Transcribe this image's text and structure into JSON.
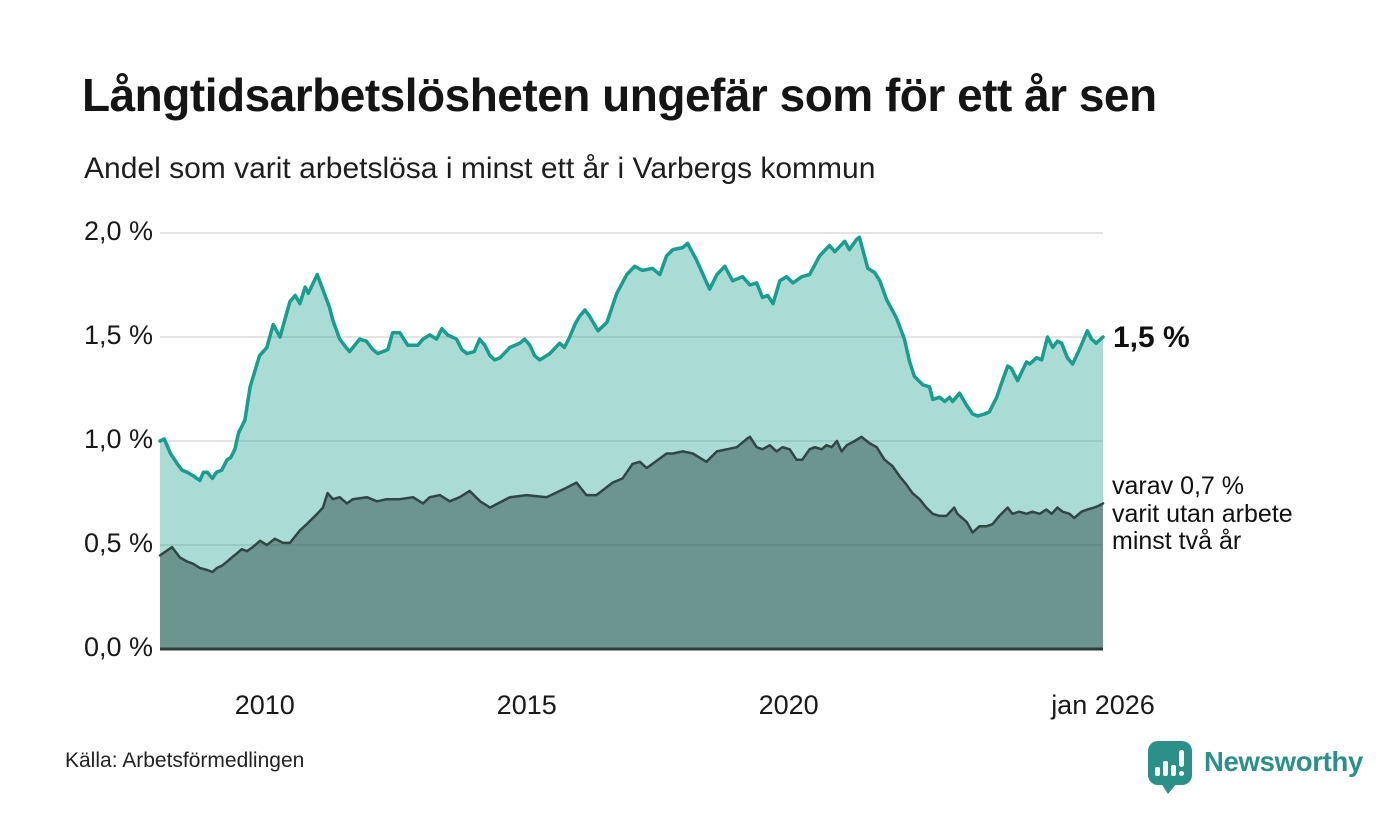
{
  "header": {
    "title": "Långtidsarbetslösheten ungefär som för ett år sen",
    "subtitle": "Andel som varit arbetslösa i minst ett år i Varbergs kommun"
  },
  "annotations": {
    "latest_value_label": "1,5 %",
    "secondary_label_lines": [
      "varav 0,7 %",
      "varit utan arbete",
      "minst två år"
    ]
  },
  "footer": {
    "source": "Källa: Arbetsförmedlingen",
    "brand": "Newsworthy"
  },
  "colors": {
    "accent_teal": "#189d8e",
    "dark_line": "#2f4744",
    "grid": "#dcdcdc",
    "axis": "#2e3c3a",
    "brand": "#2b9087",
    "text": "#191919"
  },
  "chart_data": {
    "type": "area",
    "title": "Långtidsarbetslösheten ungefär som för ett år sen",
    "subtitle": "Andel som varit arbetslösa i minst ett år i Varbergs kommun",
    "x_unit": "decimal_year",
    "xlim": [
      2008,
      2026
    ],
    "ylim": [
      0,
      2.0
    ],
    "grid": true,
    "yticks": [
      {
        "value": 2.0,
        "label": "2,0 %"
      },
      {
        "value": 1.5,
        "label": "1,5 %"
      },
      {
        "value": 1.0,
        "label": "1,0 %"
      },
      {
        "value": 0.5,
        "label": "0,5 %"
      },
      {
        "value": 0.0,
        "label": "0,0 %"
      }
    ],
    "xticks": [
      {
        "value": 2010,
        "label": "2010"
      },
      {
        "value": 2015,
        "label": "2015"
      },
      {
        "value": 2020,
        "label": "2020"
      },
      {
        "value": 2026,
        "label": "jan 2026"
      }
    ],
    "series": [
      {
        "name": "Andel arbetslösa minst ett år",
        "latest_label": "1,5 %",
        "color": "#189d8e",
        "fill": "rgba(26,158,142,0.37)",
        "line_width": 3.5,
        "points": [
          [
            2008.0,
            1.0
          ],
          [
            2008.08,
            1.01
          ],
          [
            2008.2,
            0.94
          ],
          [
            2008.33,
            0.89
          ],
          [
            2008.42,
            0.86
          ],
          [
            2008.52,
            0.85
          ],
          [
            2008.65,
            0.83
          ],
          [
            2008.76,
            0.81
          ],
          [
            2008.83,
            0.85
          ],
          [
            2008.9,
            0.85
          ],
          [
            2009.0,
            0.82
          ],
          [
            2009.08,
            0.85
          ],
          [
            2009.18,
            0.86
          ],
          [
            2009.28,
            0.91
          ],
          [
            2009.35,
            0.92
          ],
          [
            2009.43,
            0.96
          ],
          [
            2009.5,
            1.04
          ],
          [
            2009.62,
            1.1
          ],
          [
            2009.72,
            1.26
          ],
          [
            2009.9,
            1.41
          ],
          [
            2010.04,
            1.45
          ],
          [
            2010.16,
            1.56
          ],
          [
            2010.29,
            1.5
          ],
          [
            2010.48,
            1.67
          ],
          [
            2010.58,
            1.7
          ],
          [
            2010.67,
            1.66
          ],
          [
            2010.77,
            1.74
          ],
          [
            2010.83,
            1.71
          ],
          [
            2011.0,
            1.8
          ],
          [
            2011.12,
            1.72
          ],
          [
            2011.24,
            1.64
          ],
          [
            2011.3,
            1.58
          ],
          [
            2011.43,
            1.49
          ],
          [
            2011.55,
            1.45
          ],
          [
            2011.62,
            1.43
          ],
          [
            2011.81,
            1.49
          ],
          [
            2011.94,
            1.48
          ],
          [
            2012.06,
            1.44
          ],
          [
            2012.16,
            1.42
          ],
          [
            2012.35,
            1.44
          ],
          [
            2012.44,
            1.52
          ],
          [
            2012.58,
            1.52
          ],
          [
            2012.73,
            1.46
          ],
          [
            2012.92,
            1.46
          ],
          [
            2013.02,
            1.49
          ],
          [
            2013.15,
            1.51
          ],
          [
            2013.28,
            1.49
          ],
          [
            2013.38,
            1.54
          ],
          [
            2013.49,
            1.51
          ],
          [
            2013.66,
            1.49
          ],
          [
            2013.76,
            1.44
          ],
          [
            2013.86,
            1.42
          ],
          [
            2014.0,
            1.43
          ],
          [
            2014.1,
            1.49
          ],
          [
            2014.2,
            1.46
          ],
          [
            2014.3,
            1.41
          ],
          [
            2014.39,
            1.39
          ],
          [
            2014.49,
            1.4
          ],
          [
            2014.68,
            1.45
          ],
          [
            2014.87,
            1.47
          ],
          [
            2014.96,
            1.49
          ],
          [
            2015.06,
            1.46
          ],
          [
            2015.15,
            1.41
          ],
          [
            2015.25,
            1.39
          ],
          [
            2015.44,
            1.42
          ],
          [
            2015.63,
            1.47
          ],
          [
            2015.72,
            1.45
          ],
          [
            2015.82,
            1.5
          ],
          [
            2015.92,
            1.56
          ],
          [
            2016.01,
            1.6
          ],
          [
            2016.11,
            1.63
          ],
          [
            2016.2,
            1.6
          ],
          [
            2016.36,
            1.53
          ],
          [
            2016.53,
            1.57
          ],
          [
            2016.72,
            1.71
          ],
          [
            2016.91,
            1.8
          ],
          [
            2017.06,
            1.84
          ],
          [
            2017.21,
            1.82
          ],
          [
            2017.4,
            1.83
          ],
          [
            2017.54,
            1.8
          ],
          [
            2017.67,
            1.89
          ],
          [
            2017.79,
            1.92
          ],
          [
            2017.98,
            1.93
          ],
          [
            2018.07,
            1.95
          ],
          [
            2018.24,
            1.87
          ],
          [
            2018.49,
            1.73
          ],
          [
            2018.63,
            1.8
          ],
          [
            2018.78,
            1.84
          ],
          [
            2018.93,
            1.77
          ],
          [
            2019.12,
            1.79
          ],
          [
            2019.26,
            1.75
          ],
          [
            2019.39,
            1.76
          ],
          [
            2019.5,
            1.69
          ],
          [
            2019.6,
            1.7
          ],
          [
            2019.7,
            1.66
          ],
          [
            2019.83,
            1.77
          ],
          [
            2019.96,
            1.79
          ],
          [
            2020.08,
            1.76
          ],
          [
            2020.25,
            1.79
          ],
          [
            2020.4,
            1.8
          ],
          [
            2020.59,
            1.89
          ],
          [
            2020.78,
            1.94
          ],
          [
            2020.88,
            1.91
          ],
          [
            2021.07,
            1.96
          ],
          [
            2021.16,
            1.92
          ],
          [
            2021.3,
            1.97
          ],
          [
            2021.35,
            1.98
          ],
          [
            2021.51,
            1.83
          ],
          [
            2021.64,
            1.81
          ],
          [
            2021.74,
            1.77
          ],
          [
            2021.87,
            1.68
          ],
          [
            2022.06,
            1.59
          ],
          [
            2022.21,
            1.49
          ],
          [
            2022.31,
            1.38
          ],
          [
            2022.4,
            1.31
          ],
          [
            2022.56,
            1.27
          ],
          [
            2022.69,
            1.26
          ],
          [
            2022.75,
            1.2
          ],
          [
            2022.88,
            1.21
          ],
          [
            2022.98,
            1.19
          ],
          [
            2023.07,
            1.21
          ],
          [
            2023.13,
            1.19
          ],
          [
            2023.26,
            1.23
          ],
          [
            2023.4,
            1.17
          ],
          [
            2023.51,
            1.13
          ],
          [
            2023.61,
            1.12
          ],
          [
            2023.74,
            1.13
          ],
          [
            2023.83,
            1.14
          ],
          [
            2023.97,
            1.21
          ],
          [
            2024.08,
            1.29
          ],
          [
            2024.18,
            1.36
          ],
          [
            2024.25,
            1.35
          ],
          [
            2024.37,
            1.29
          ],
          [
            2024.54,
            1.38
          ],
          [
            2024.6,
            1.37
          ],
          [
            2024.73,
            1.4
          ],
          [
            2024.83,
            1.39
          ],
          [
            2024.94,
            1.5
          ],
          [
            2025.04,
            1.45
          ],
          [
            2025.13,
            1.48
          ],
          [
            2025.21,
            1.47
          ],
          [
            2025.32,
            1.4
          ],
          [
            2025.42,
            1.37
          ],
          [
            2025.55,
            1.44
          ],
          [
            2025.7,
            1.53
          ],
          [
            2025.78,
            1.49
          ],
          [
            2025.87,
            1.47
          ],
          [
            2026.0,
            1.5
          ]
        ]
      },
      {
        "name": "varav utan arbete minst två år",
        "latest_label": "varav 0,7 % varit utan arbete minst två år",
        "color": "#2f4744",
        "fill": "rgba(33,64,60,0.45)",
        "line_width": 2.5,
        "points": [
          [
            2008.0,
            0.45
          ],
          [
            2008.23,
            0.49
          ],
          [
            2008.38,
            0.44
          ],
          [
            2008.52,
            0.42
          ],
          [
            2008.63,
            0.41
          ],
          [
            2008.76,
            0.39
          ],
          [
            2008.9,
            0.38
          ],
          [
            2009.0,
            0.37
          ],
          [
            2009.09,
            0.39
          ],
          [
            2009.18,
            0.4
          ],
          [
            2009.28,
            0.42
          ],
          [
            2009.37,
            0.44
          ],
          [
            2009.47,
            0.46
          ],
          [
            2009.56,
            0.48
          ],
          [
            2009.66,
            0.47
          ],
          [
            2009.77,
            0.49
          ],
          [
            2009.91,
            0.52
          ],
          [
            2010.04,
            0.5
          ],
          [
            2010.19,
            0.53
          ],
          [
            2010.35,
            0.51
          ],
          [
            2010.48,
            0.51
          ],
          [
            2010.67,
            0.57
          ],
          [
            2010.8,
            0.6
          ],
          [
            2011.0,
            0.65
          ],
          [
            2011.11,
            0.68
          ],
          [
            2011.2,
            0.75
          ],
          [
            2011.3,
            0.72
          ],
          [
            2011.43,
            0.73
          ],
          [
            2011.57,
            0.7
          ],
          [
            2011.68,
            0.72
          ],
          [
            2011.95,
            0.73
          ],
          [
            2012.14,
            0.71
          ],
          [
            2012.33,
            0.72
          ],
          [
            2012.58,
            0.72
          ],
          [
            2012.83,
            0.73
          ],
          [
            2013.02,
            0.7
          ],
          [
            2013.15,
            0.73
          ],
          [
            2013.34,
            0.74
          ],
          [
            2013.53,
            0.71
          ],
          [
            2013.72,
            0.73
          ],
          [
            2013.91,
            0.76
          ],
          [
            2014.11,
            0.71
          ],
          [
            2014.3,
            0.68
          ],
          [
            2014.68,
            0.73
          ],
          [
            2015.0,
            0.74
          ],
          [
            2015.38,
            0.73
          ],
          [
            2015.72,
            0.77
          ],
          [
            2015.95,
            0.8
          ],
          [
            2016.14,
            0.74
          ],
          [
            2016.33,
            0.74
          ],
          [
            2016.64,
            0.8
          ],
          [
            2016.83,
            0.82
          ],
          [
            2017.02,
            0.89
          ],
          [
            2017.16,
            0.9
          ],
          [
            2017.29,
            0.87
          ],
          [
            2017.4,
            0.89
          ],
          [
            2017.67,
            0.94
          ],
          [
            2017.79,
            0.94
          ],
          [
            2017.98,
            0.95
          ],
          [
            2018.17,
            0.94
          ],
          [
            2018.43,
            0.9
          ],
          [
            2018.63,
            0.95
          ],
          [
            2018.82,
            0.96
          ],
          [
            2019.01,
            0.97
          ],
          [
            2019.2,
            1.01
          ],
          [
            2019.26,
            1.02
          ],
          [
            2019.39,
            0.97
          ],
          [
            2019.5,
            0.96
          ],
          [
            2019.64,
            0.98
          ],
          [
            2019.77,
            0.95
          ],
          [
            2019.88,
            0.97
          ],
          [
            2020.02,
            0.96
          ],
          [
            2020.15,
            0.91
          ],
          [
            2020.26,
            0.91
          ],
          [
            2020.4,
            0.96
          ],
          [
            2020.5,
            0.97
          ],
          [
            2020.63,
            0.96
          ],
          [
            2020.72,
            0.98
          ],
          [
            2020.82,
            0.97
          ],
          [
            2020.92,
            1.0
          ],
          [
            2021.01,
            0.95
          ],
          [
            2021.11,
            0.98
          ],
          [
            2021.26,
            1.0
          ],
          [
            2021.39,
            1.02
          ],
          [
            2021.54,
            0.99
          ],
          [
            2021.68,
            0.97
          ],
          [
            2021.83,
            0.91
          ],
          [
            2021.98,
            0.88
          ],
          [
            2022.12,
            0.83
          ],
          [
            2022.25,
            0.79
          ],
          [
            2022.36,
            0.75
          ],
          [
            2022.5,
            0.72
          ],
          [
            2022.63,
            0.68
          ],
          [
            2022.75,
            0.65
          ],
          [
            2022.88,
            0.64
          ],
          [
            2023.01,
            0.64
          ],
          [
            2023.16,
            0.68
          ],
          [
            2023.22,
            0.65
          ],
          [
            2023.4,
            0.61
          ],
          [
            2023.51,
            0.56
          ],
          [
            2023.64,
            0.59
          ],
          [
            2023.77,
            0.59
          ],
          [
            2023.89,
            0.6
          ],
          [
            2024.02,
            0.64
          ],
          [
            2024.18,
            0.68
          ],
          [
            2024.27,
            0.65
          ],
          [
            2024.4,
            0.66
          ],
          [
            2024.54,
            0.65
          ],
          [
            2024.65,
            0.66
          ],
          [
            2024.79,
            0.65
          ],
          [
            2024.92,
            0.67
          ],
          [
            2025.02,
            0.65
          ],
          [
            2025.13,
            0.68
          ],
          [
            2025.23,
            0.66
          ],
          [
            2025.36,
            0.65
          ],
          [
            2025.45,
            0.63
          ],
          [
            2025.59,
            0.66
          ],
          [
            2025.7,
            0.67
          ],
          [
            2025.83,
            0.68
          ],
          [
            2025.93,
            0.69
          ],
          [
            2026.0,
            0.7
          ]
        ]
      }
    ]
  }
}
